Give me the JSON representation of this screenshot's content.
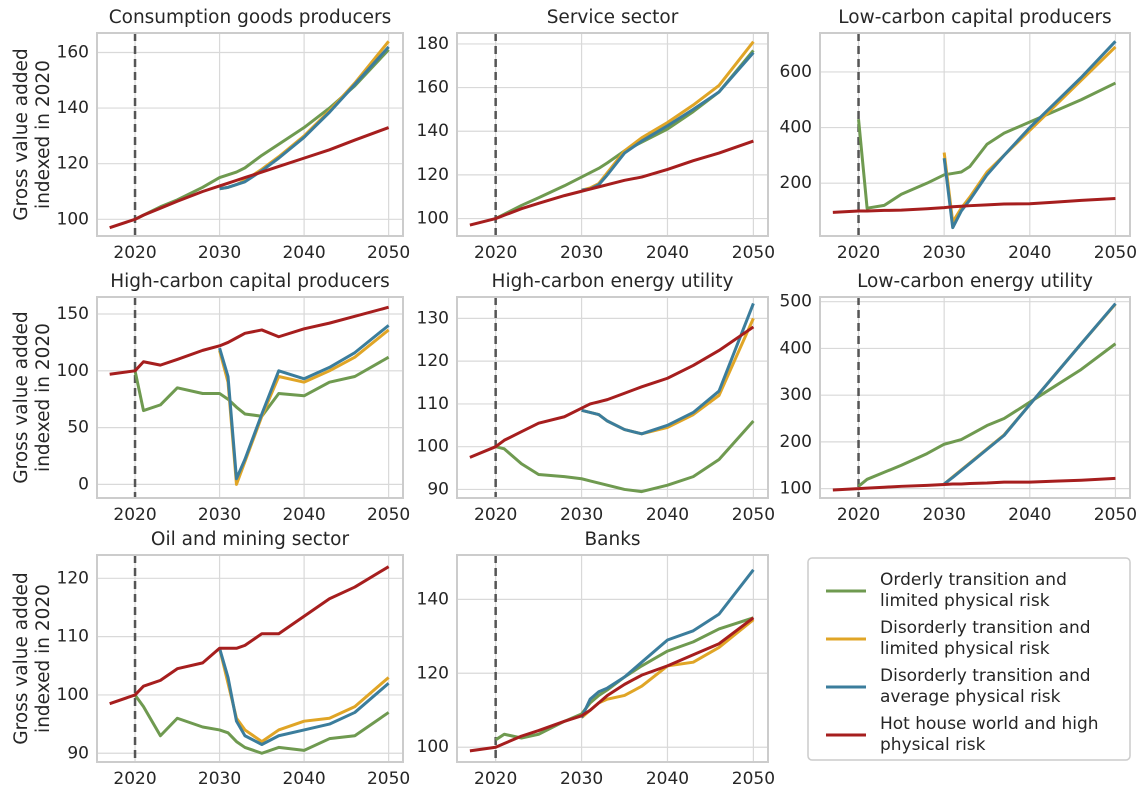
{
  "legend": [
    "Orderly transition and limited physical risk",
    "Disorderly transition and limited physical risk",
    "Disorderly transition and average physical risk",
    "Hot house world and high physical risk"
  ],
  "chart_data": [
    {
      "type": "line",
      "title": "Consumption goods producers",
      "ylabel": [
        "Gross value added",
        "indexed in 2020"
      ],
      "vline": 2020,
      "grid": true,
      "x": [
        2017,
        2020,
        2021,
        2023,
        2025,
        2028,
        2030,
        2031,
        2032,
        2033,
        2035,
        2037,
        2040,
        2043,
        2046,
        2050
      ],
      "xlim": [
        2015.5,
        2051.7
      ],
      "xticks": [
        2020,
        2030,
        2040,
        2050
      ],
      "ylim": [
        94,
        167
      ],
      "yticks": [
        100,
        120,
        140,
        160
      ],
      "series": [
        {
          "color": "#6f9a50",
          "values": [
            null,
            100,
            101.5,
            104.5,
            107,
            111.5,
            115,
            116,
            117,
            118.5,
            123,
            127,
            133,
            140,
            148,
            161
          ]
        },
        {
          "color": "#e0a526",
          "values": [
            null,
            null,
            null,
            null,
            null,
            null,
            111,
            111.5,
            112.5,
            114,
            118,
            122.5,
            130,
            139,
            149,
            164
          ]
        },
        {
          "color": "#3b7d9c",
          "values": [
            null,
            null,
            null,
            null,
            null,
            null,
            111,
            111.5,
            112.5,
            113.5,
            117.5,
            122,
            129.5,
            138.5,
            148.5,
            162
          ]
        },
        {
          "color": "#a61e1e",
          "values": [
            97,
            100,
            101.5,
            104,
            106.5,
            110,
            112,
            113,
            114,
            115,
            117,
            119,
            122,
            125,
            128.5,
            133
          ]
        }
      ]
    },
    {
      "type": "line",
      "title": "Service sector",
      "vline": 2020,
      "grid": true,
      "x": [
        2017,
        2020,
        2021,
        2023,
        2025,
        2028,
        2030,
        2031,
        2032,
        2033,
        2035,
        2037,
        2040,
        2043,
        2046,
        2050
      ],
      "xlim": [
        2015.5,
        2051.7
      ],
      "xticks": [
        2020,
        2030,
        2040,
        2050
      ],
      "ylim": [
        92,
        185
      ],
      "yticks": [
        100,
        120,
        140,
        160,
        180
      ],
      "series": [
        {
          "color": "#6f9a50",
          "values": [
            null,
            100,
            102,
            106,
            109.5,
            115,
            119,
            121,
            123,
            125.5,
            131,
            135,
            141,
            149,
            158,
            177
          ]
        },
        {
          "color": "#e0a526",
          "values": [
            null,
            null,
            null,
            null,
            null,
            null,
            113,
            114,
            116,
            121,
            131,
            137,
            144,
            152,
            161,
            181
          ]
        },
        {
          "color": "#3b7d9c",
          "values": [
            null,
            null,
            null,
            null,
            null,
            null,
            113,
            113.5,
            115.5,
            120,
            130,
            135.5,
            142.5,
            150,
            158,
            176
          ]
        },
        {
          "color": "#a61e1e",
          "values": [
            97,
            100,
            101.5,
            104.5,
            107,
            110.5,
            112.5,
            113.5,
            114.5,
            115.5,
            117.5,
            119,
            122.5,
            126.5,
            130,
            135.5
          ]
        }
      ]
    },
    {
      "type": "line",
      "title": "Low-carbon capital producers",
      "vline": 2020,
      "grid": true,
      "x": [
        2017,
        2020,
        2021,
        2023,
        2025,
        2028,
        2030,
        2031,
        2032,
        2033,
        2035,
        2037,
        2040,
        2043,
        2046,
        2050
      ],
      "xlim": [
        2015.5,
        2051.7
      ],
      "xticks": [
        2020,
        2030,
        2040,
        2050
      ],
      "ylim": [
        10,
        740
      ],
      "yticks": [
        200,
        400,
        600
      ],
      "series": [
        {
          "color": "#6f9a50",
          "values": [
            null,
            430,
            110,
            120,
            160,
            200,
            230,
            235,
            240,
            260,
            340,
            380,
            420,
            460,
            500,
            560
          ]
        },
        {
          "color": "#e0a526",
          "values": [
            null,
            null,
            null,
            null,
            null,
            null,
            310,
            60,
            110,
            150,
            240,
            300,
            390,
            480,
            570,
            690
          ]
        },
        {
          "color": "#3b7d9c",
          "values": [
            null,
            null,
            null,
            null,
            null,
            null,
            290,
            40,
            100,
            140,
            230,
            300,
            400,
            490,
            580,
            710
          ]
        },
        {
          "color": "#a61e1e",
          "values": [
            95,
            100,
            100,
            102,
            103,
            108,
            112,
            115,
            117,
            119,
            122,
            125,
            126,
            132,
            138,
            145
          ]
        }
      ]
    },
    {
      "type": "line",
      "title": "High-carbon capital producers",
      "ylabel": [
        "Gross value added",
        "indexed in 2020"
      ],
      "vline": 2020,
      "grid": true,
      "x": [
        2017,
        2020,
        2021,
        2023,
        2025,
        2028,
        2030,
        2031,
        2032,
        2033,
        2035,
        2037,
        2040,
        2043,
        2046,
        2050
      ],
      "xlim": [
        2015.5,
        2051.7
      ],
      "xticks": [
        2020,
        2030,
        2040,
        2050
      ],
      "ylim": [
        -12,
        165
      ],
      "yticks": [
        0,
        50,
        100,
        150
      ],
      "series": [
        {
          "color": "#6f9a50",
          "values": [
            null,
            100,
            65,
            70,
            85,
            80,
            80,
            75,
            68,
            62,
            60,
            80,
            78,
            90,
            95,
            112
          ]
        },
        {
          "color": "#e0a526",
          "values": [
            null,
            null,
            null,
            null,
            null,
            null,
            118,
            90,
            0,
            20,
            60,
            95,
            90,
            100,
            112,
            136
          ]
        },
        {
          "color": "#3b7d9c",
          "values": [
            null,
            null,
            null,
            null,
            null,
            null,
            120,
            95,
            5,
            22,
            62,
            100,
            93,
            103,
            116,
            140
          ]
        },
        {
          "color": "#a61e1e",
          "values": [
            97,
            100,
            108,
            105,
            110,
            118,
            122,
            125,
            129,
            133,
            136,
            130,
            137,
            142,
            148,
            156
          ]
        }
      ]
    },
    {
      "type": "line",
      "title": "High-carbon energy utility",
      "vline": 2020,
      "grid": true,
      "x": [
        2017,
        2020,
        2021,
        2023,
        2025,
        2028,
        2030,
        2031,
        2032,
        2033,
        2035,
        2037,
        2040,
        2043,
        2046,
        2050
      ],
      "xlim": [
        2015.5,
        2051.7
      ],
      "xticks": [
        2020,
        2030,
        2040,
        2050
      ],
      "ylim": [
        88,
        135
      ],
      "yticks": [
        90,
        100,
        110,
        120,
        130
      ],
      "series": [
        {
          "color": "#6f9a50",
          "values": [
            null,
            100,
            99.5,
            96,
            93.5,
            93,
            92.5,
            92,
            91.5,
            91,
            90,
            89.5,
            91,
            93,
            97,
            106
          ]
        },
        {
          "color": "#e0a526",
          "values": [
            null,
            null,
            null,
            null,
            null,
            null,
            108.5,
            108,
            107.5,
            106,
            104,
            103,
            104.5,
            107.5,
            112,
            130
          ]
        },
        {
          "color": "#3b7d9c",
          "values": [
            null,
            null,
            null,
            null,
            null,
            null,
            108.5,
            108,
            107.5,
            106,
            104,
            103,
            105,
            108,
            113,
            133.5
          ]
        },
        {
          "color": "#a61e1e",
          "values": [
            97.5,
            100,
            101.5,
            103.5,
            105.5,
            107,
            109,
            110,
            110.5,
            111,
            112.5,
            114,
            116,
            119,
            122.5,
            128
          ]
        }
      ]
    },
    {
      "type": "line",
      "title": "Low-carbon energy utility",
      "vline": 2020,
      "grid": true,
      "x": [
        2017,
        2020,
        2021,
        2023,
        2025,
        2028,
        2030,
        2031,
        2032,
        2033,
        2035,
        2037,
        2040,
        2043,
        2046,
        2050
      ],
      "xlim": [
        2015.5,
        2051.7
      ],
      "xticks": [
        2020,
        2030,
        2040,
        2050
      ],
      "ylim": [
        80,
        510
      ],
      "yticks": [
        100,
        200,
        300,
        400,
        500
      ],
      "series": [
        {
          "color": "#6f9a50",
          "values": [
            null,
            105,
            120,
            135,
            150,
            175,
            195,
            200,
            205,
            215,
            235,
            250,
            285,
            320,
            355,
            410
          ]
        },
        {
          "color": "#e0a526",
          "values": [
            null,
            null,
            null,
            null,
            null,
            null,
            110,
            125,
            140,
            155,
            185,
            215,
            280,
            345,
            410,
            495
          ]
        },
        {
          "color": "#3b7d9c",
          "values": [
            null,
            null,
            null,
            null,
            null,
            null,
            110,
            124,
            139,
            154,
            184,
            214,
            280,
            345,
            410,
            496
          ]
        },
        {
          "color": "#a61e1e",
          "values": [
            97,
            100,
            101,
            103,
            105,
            107,
            109,
            110,
            110,
            111,
            112,
            114,
            114,
            116,
            118,
            122
          ]
        }
      ]
    },
    {
      "type": "line",
      "title": "Oil and mining sector",
      "ylabel": [
        "Gross value added",
        "indexed in 2020"
      ],
      "vline": 2020,
      "grid": true,
      "x": [
        2017,
        2020,
        2021,
        2023,
        2025,
        2028,
        2030,
        2031,
        2032,
        2033,
        2035,
        2037,
        2040,
        2043,
        2046,
        2050
      ],
      "xlim": [
        2015.5,
        2051.7
      ],
      "xticks": [
        2020,
        2030,
        2040,
        2050
      ],
      "ylim": [
        88.5,
        124
      ],
      "yticks": [
        90,
        100,
        110,
        120
      ],
      "series": [
        {
          "color": "#6f9a50",
          "values": [
            null,
            100,
            98,
            93,
            96,
            94.5,
            94,
            93.5,
            92,
            91,
            90,
            91,
            90.5,
            92.5,
            93,
            97
          ]
        },
        {
          "color": "#e0a526",
          "values": [
            null,
            null,
            null,
            null,
            null,
            null,
            108,
            102,
            96,
            94,
            92,
            94,
            95.5,
            96,
            98,
            103
          ]
        },
        {
          "color": "#3b7d9c",
          "values": [
            null,
            null,
            null,
            null,
            null,
            null,
            108,
            103,
            95.5,
            93,
            91.5,
            93,
            94,
            95,
            97,
            102
          ]
        },
        {
          "color": "#a61e1e",
          "values": [
            98.5,
            100,
            101.5,
            102.5,
            104.5,
            105.5,
            108,
            108,
            108,
            108.5,
            110.5,
            110.5,
            113.5,
            116.5,
            118.5,
            122
          ]
        }
      ]
    },
    {
      "type": "line",
      "title": "Banks",
      "vline": 2020,
      "grid": true,
      "x": [
        2017,
        2020,
        2021,
        2023,
        2025,
        2028,
        2030,
        2031,
        2032,
        2033,
        2035,
        2037,
        2040,
        2043,
        2046,
        2050
      ],
      "xlim": [
        2015.5,
        2051.7
      ],
      "xticks": [
        2020,
        2030,
        2040,
        2050
      ],
      "ylim": [
        96,
        152
      ],
      "yticks": [
        100,
        120,
        140
      ],
      "series": [
        {
          "color": "#6f9a50",
          "values": [
            null,
            102,
            103.5,
            102.5,
            103.5,
            107,
            109,
            112,
            114,
            115.5,
            119,
            122,
            126,
            128.5,
            132,
            135
          ]
        },
        {
          "color": "#e0a526",
          "values": [
            null,
            null,
            null,
            null,
            null,
            null,
            108,
            110,
            112,
            113,
            114,
            116.5,
            122,
            123,
            127,
            134.5
          ]
        },
        {
          "color": "#3b7d9c",
          "values": [
            null,
            null,
            null,
            null,
            null,
            null,
            108,
            113,
            115,
            116,
            119,
            123,
            129,
            131.5,
            136,
            148
          ]
        },
        {
          "color": "#a61e1e",
          "values": [
            99,
            100,
            101,
            103,
            104.5,
            107,
            108.5,
            110,
            112,
            114,
            117,
            119.5,
            122,
            125,
            128,
            135
          ]
        }
      ]
    }
  ]
}
